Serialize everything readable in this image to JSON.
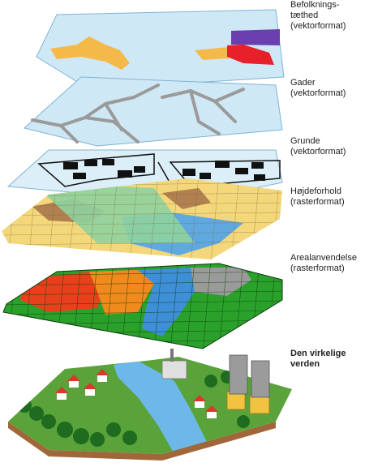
{
  "layers": [
    {
      "id": "population",
      "lines": [
        "Befolknings-",
        "tæthed",
        "(vektorformat)"
      ]
    },
    {
      "id": "streets",
      "lines": [
        "Gader",
        "(vektorformat)"
      ]
    },
    {
      "id": "parcels",
      "lines": [
        "Grunde",
        "(vektorformat)"
      ]
    },
    {
      "id": "elevation",
      "lines": [
        "Højdeforhold",
        "(rasterformat)"
      ]
    },
    {
      "id": "landuse",
      "lines": [
        "Arealanvendelse",
        "(rasterformat)"
      ]
    },
    {
      "id": "realworld",
      "lines": [
        "Den virkelige",
        "verden"
      ]
    }
  ],
  "colors": {
    "vector_layer_fill": "#cfe8f5",
    "vector_layer_stroke": "#7fb3d5",
    "population_orange": "#f5b94a",
    "population_purple": "#6a3fb0",
    "population_red": "#e8202a",
    "street_gray": "#9a9a9a",
    "parcel_black": "#111111",
    "elevation_yellow": "#f3d77a",
    "elevation_brown": "#b08050",
    "elevation_blue": "#5fa8e0",
    "elevation_green": "#8fd19e",
    "landuse_green": "#2aa12a",
    "landuse_red": "#e8401c",
    "landuse_orange": "#f08a1c",
    "landuse_blue": "#3f8fd8",
    "landuse_gray": "#9a9a9a",
    "world_green": "#5aa33a",
    "world_river": "#6db8e8"
  }
}
